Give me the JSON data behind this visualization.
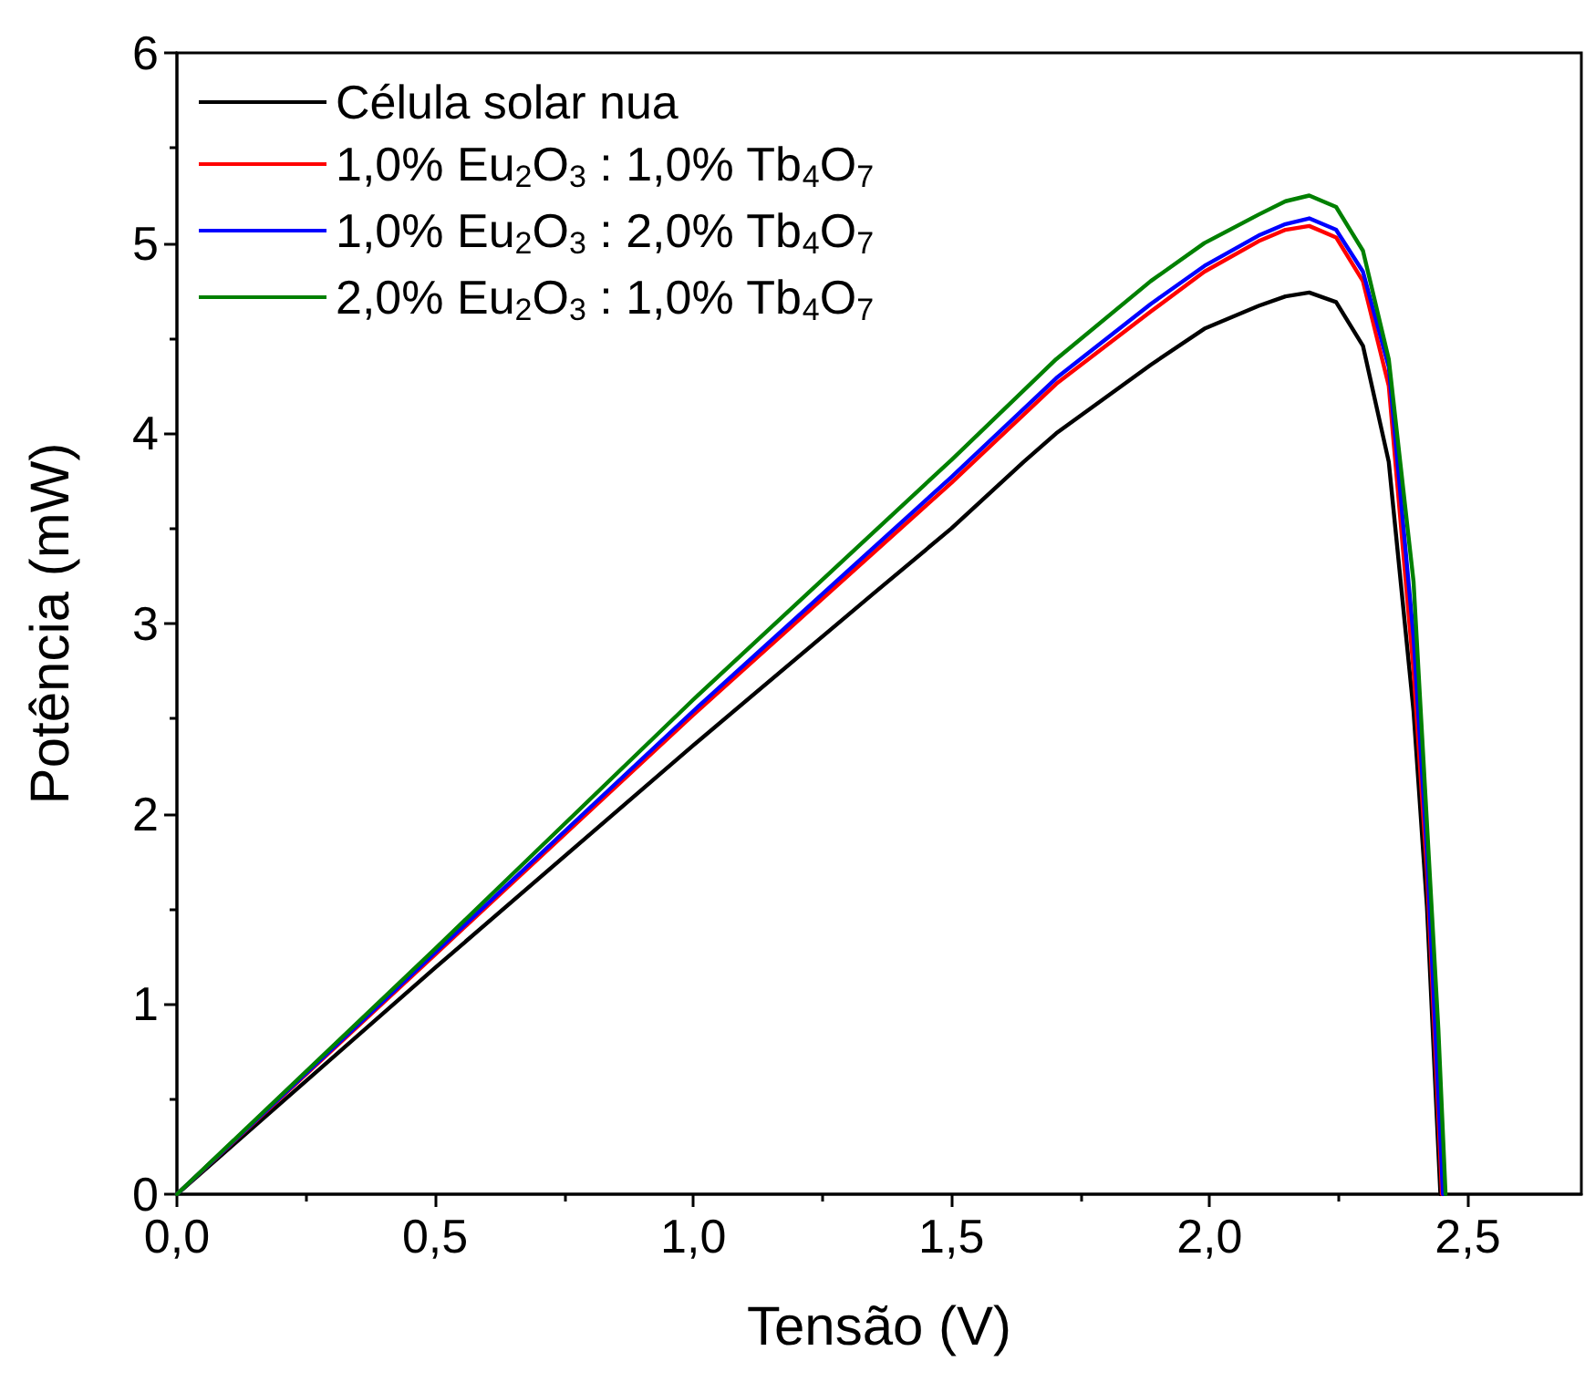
{
  "chart_data": {
    "type": "line",
    "xlabel": "Tensão (V)",
    "ylabel": "Potência (mW)",
    "xlim": [
      0,
      2.72
    ],
    "ylim": [
      0,
      6
    ],
    "xticks": [
      {
        "value": 0,
        "label": "0,0"
      },
      {
        "value": 0.5,
        "label": "0,5"
      },
      {
        "value": 1,
        "label": "1,0"
      },
      {
        "value": 1.5,
        "label": "1,5"
      },
      {
        "value": 2,
        "label": "2,0"
      },
      {
        "value": 2.5,
        "label": "2,5"
      }
    ],
    "yticks": [
      0,
      1,
      2,
      3,
      4,
      5,
      6
    ],
    "grid": false,
    "legend": "top left",
    "marker": "none",
    "line_style": "solid",
    "series": [
      {
        "name": "Célula solar nua",
        "color": "#000000",
        "x": [
          0,
          0.5,
          1,
          1.35,
          1.5,
          1.64,
          1.703,
          1.886,
          1.99,
          2.095,
          2.147,
          2.193,
          2.245,
          2.297,
          2.347,
          2.395,
          2.421,
          2.447
        ],
        "values": [
          0,
          1.19,
          2.36,
          3.16,
          3.5,
          3.85,
          4.0,
          4.36,
          4.55,
          4.67,
          4.72,
          4.74,
          4.69,
          4.46,
          3.85,
          2.54,
          1.51,
          0
        ]
      },
      {
        "name": "1,0% Eu$_{2}$O$_{3}$ : 1,0% Tb$_{4}$O$_{7}$",
        "color": "#ff0000",
        "x": [
          0,
          0.5,
          1,
          1.5,
          1.703,
          1.886,
          1.99,
          2.095,
          2.147,
          2.193,
          2.245,
          2.297,
          2.347,
          2.395,
          2.421,
          2.45
        ],
        "values": [
          0,
          1.26,
          2.52,
          3.74,
          4.26,
          4.64,
          4.85,
          5.01,
          5.07,
          5.09,
          5.03,
          4.8,
          4.25,
          2.75,
          1.7,
          0
        ]
      },
      {
        "name": "1,0% Eu$_{2}$O$_{3}$ : 2,0% Tb$_{4}$O$_{7}$",
        "color": "#0000ff",
        "x": [
          0,
          0.5,
          1,
          1.5,
          1.703,
          1.886,
          1.99,
          2.095,
          2.147,
          2.193,
          2.245,
          2.297,
          2.347,
          2.395,
          2.421,
          2.452
        ],
        "values": [
          0,
          1.27,
          2.54,
          3.77,
          4.29,
          4.68,
          4.88,
          5.04,
          5.1,
          5.13,
          5.07,
          4.85,
          4.35,
          2.93,
          1.8,
          0
        ]
      },
      {
        "name": "2,0% Eu$_{2}$O$_{3}$ : 1,0% Tb$_{4}$O$_{7}$",
        "color": "#008000",
        "x": [
          0,
          0.5,
          1,
          1.5,
          1.703,
          1.886,
          1.99,
          2.095,
          2.147,
          2.193,
          2.245,
          2.297,
          2.347,
          2.395,
          2.443,
          2.457
        ],
        "values": [
          0,
          1.29,
          2.6,
          3.86,
          4.39,
          4.8,
          5.0,
          5.15,
          5.22,
          5.25,
          5.19,
          4.96,
          4.39,
          3.22,
          0.87,
          0
        ]
      }
    ]
  }
}
